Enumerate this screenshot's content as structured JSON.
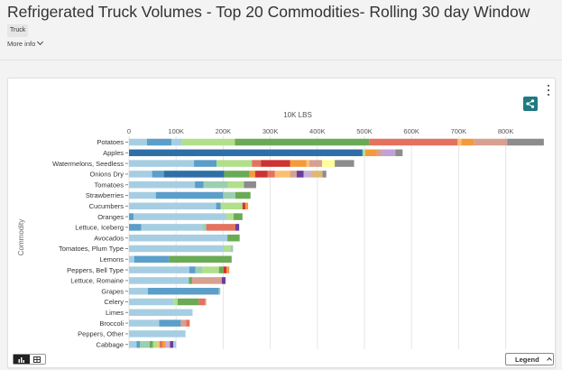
{
  "header": {
    "title": "Refrigerated Truck Volumes - Top 20 Commodities- Rolling 30 day Window",
    "tag": "Truck",
    "more_info": "More info"
  },
  "controls": {
    "legend_label": "Legend"
  },
  "chart_data": {
    "type": "bar",
    "orientation": "horizontal",
    "stacked": true,
    "title": "10K LBS",
    "xlabel": "",
    "ylabel": "Commodity",
    "xlim": [
      0,
      880000
    ],
    "xticks": [
      0,
      100000,
      200000,
      300000,
      400000,
      500000,
      600000,
      700000,
      800000
    ],
    "xtick_labels": [
      "0",
      "100K",
      "200K",
      "300K",
      "400K",
      "500K",
      "600K",
      "700K",
      "800K"
    ],
    "grid": true,
    "categories": [
      "Potatoes",
      "Apples",
      "Watermelons, Seedless",
      "Onions Dry",
      "Tomatoes",
      "Strawberries",
      "Cucumbers",
      "Oranges",
      "Lettuce, Iceberg",
      "Avocados",
      "Tomatoes, Plum Type",
      "Lemons",
      "Peppers, Bell Type",
      "Lettuce, Romaine",
      "Grapes",
      "Celery",
      "Limes",
      "Broccoli",
      "Peppers, Other",
      "Cabbage"
    ],
    "segments": [
      [
        [
          "#a6cee3",
          38000
        ],
        [
          "#5b9ec9",
          52000
        ],
        [
          "#a6cee3",
          22000
        ],
        [
          "#b2df8a",
          113000
        ],
        [
          "#6aaa55",
          285000
        ],
        [
          "#e3725f",
          188000
        ],
        [
          "#fdbf6f",
          8000
        ],
        [
          "#f39a3c",
          26000
        ],
        [
          "#d8a090",
          71000
        ],
        [
          "#8c8c8c",
          78000
        ]
      ],
      [
        [
          "#2f6fa8",
          496000
        ],
        [
          "#b2df8a",
          6000
        ],
        [
          "#f39a3c",
          24000
        ],
        [
          "#d8a090",
          12000
        ],
        [
          "#c3a0d6",
          28000
        ],
        [
          "#8c8c8c",
          15000
        ]
      ],
      [
        [
          "#a6cee3",
          138000
        ],
        [
          "#5b9ec9",
          48000
        ],
        [
          "#b2df8a",
          75000
        ],
        [
          "#e3725f",
          19000
        ],
        [
          "#cc3333",
          62000
        ],
        [
          "#f39a3c",
          35000
        ],
        [
          "#fdbf6f",
          6000
        ],
        [
          "#d8a090",
          27000
        ],
        [
          "#ffff99",
          27000
        ],
        [
          "#8c8c8c",
          41000
        ]
      ],
      [
        [
          "#a6cee3",
          49000
        ],
        [
          "#5b9ec9",
          25000
        ],
        [
          "#2f6fa8",
          128000
        ],
        [
          "#6aaa55",
          54000
        ],
        [
          "#f39a3c",
          12000
        ],
        [
          "#cc3333",
          26000
        ],
        [
          "#e3725f",
          16000
        ],
        [
          "#fdbf6f",
          32000
        ],
        [
          "#d8a090",
          14000
        ],
        [
          "#6a3d9a",
          15000
        ],
        [
          "#cab2d6",
          16000
        ],
        [
          "#e0b870",
          24000
        ],
        [
          "#8c8c8c",
          8000
        ]
      ],
      [
        [
          "#a6cee3",
          140000
        ],
        [
          "#5b9ec9",
          18000
        ],
        [
          "#9bcfb0",
          52000
        ],
        [
          "#b2df8a",
          34000
        ],
        [
          "#8c8c8c",
          26000
        ]
      ],
      [
        [
          "#a6cee3",
          57000
        ],
        [
          "#5b9ec9",
          143000
        ],
        [
          "#9bcfb0",
          26000
        ],
        [
          "#6aaa55",
          32000
        ]
      ],
      [
        [
          "#a6cee3",
          185000
        ],
        [
          "#5b9ec9",
          10000
        ],
        [
          "#b2df8a",
          46000
        ],
        [
          "#cc3333",
          6000
        ],
        [
          "#f39a3c",
          6000
        ]
      ],
      [
        [
          "#5b9ec9",
          10000
        ],
        [
          "#a6cee3",
          197000
        ],
        [
          "#b2df8a",
          15000
        ],
        [
          "#6aaa55",
          19000
        ]
      ],
      [
        [
          "#5b9ec9",
          26000
        ],
        [
          "#a6cee3",
          130000
        ],
        [
          "#9bcfb0",
          8000
        ],
        [
          "#e3725f",
          62000
        ],
        [
          "#6a3d9a",
          8000
        ]
      ],
      [
        [
          "#a6cee3",
          209000
        ],
        [
          "#6aaa55",
          26000
        ]
      ],
      [
        [
          "#a6cee3",
          202000
        ],
        [
          "#b2df8a",
          13000
        ],
        [
          "#9bcfb0",
          6000
        ]
      ],
      [
        [
          "#a6cee3",
          11000
        ],
        [
          "#5b9ec9",
          74000
        ],
        [
          "#6aaa55",
          133000
        ]
      ],
      [
        [
          "#a6cee3",
          128000
        ],
        [
          "#5b9ec9",
          13000
        ],
        [
          "#9bcfb0",
          15000
        ],
        [
          "#b2df8a",
          35000
        ],
        [
          "#6aaa55",
          10000
        ],
        [
          "#cc3333",
          6000
        ],
        [
          "#f39a3c",
          6000
        ]
      ],
      [
        [
          "#a6cee3",
          127000
        ],
        [
          "#6aaa55",
          7000
        ],
        [
          "#d8a090",
          63000
        ],
        [
          "#6a3d9a",
          8000
        ]
      ],
      [
        [
          "#a6cee3",
          40000
        ],
        [
          "#5b9ec9",
          151000
        ],
        [
          "#9bcfb0",
          3000
        ]
      ],
      [
        [
          "#a6cee3",
          95000
        ],
        [
          "#b2df8a",
          8000
        ],
        [
          "#6aaa55",
          45000
        ],
        [
          "#e3725f",
          13000
        ],
        [
          "#d8a090",
          3000
        ]
      ],
      [
        [
          "#a6cee3",
          135000
        ]
      ],
      [
        [
          "#a6cee3",
          64000
        ],
        [
          "#5b9ec9",
          46000
        ],
        [
          "#d8a090",
          11000
        ],
        [
          "#e3725f",
          8000
        ]
      ],
      [
        [
          "#a6cee3",
          120000
        ]
      ],
      [
        [
          "#a6cee3",
          16000
        ],
        [
          "#5b9ec9",
          7000
        ],
        [
          "#9bcfb0",
          21000
        ],
        [
          "#6aaa55",
          7000
        ],
        [
          "#b2df8a",
          9000
        ],
        [
          "#fdbf6f",
          5000
        ],
        [
          "#e3725f",
          6000
        ],
        [
          "#f39a3c",
          7000
        ],
        [
          "#cab2d6",
          9000
        ],
        [
          "#6a3d9a",
          7000
        ],
        [
          "#a6cee3",
          6000
        ]
      ]
    ]
  }
}
